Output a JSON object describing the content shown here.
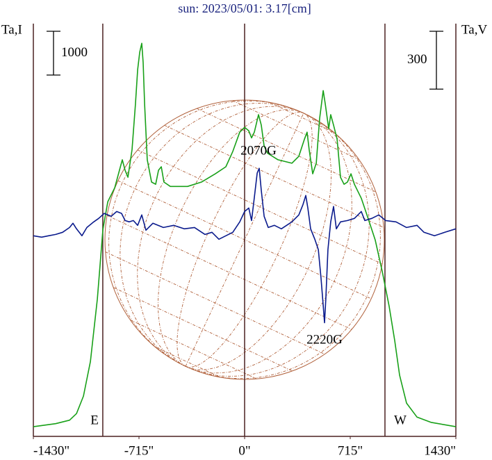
{
  "chart_data": {
    "type": "line",
    "title": "sun: 2023/05/01: 3.17[cm]",
    "y_label": "Ta,I",
    "y2_label": "Ta,V",
    "annotations": [
      "2070G",
      "2220G"
    ],
    "limb_labels": [
      "E",
      "W"
    ],
    "limb_lines": [
      -960,
      0,
      950
    ],
    "i_scale": 1000,
    "v_scale": 300,
    "xlim": [
      -1430,
      1430
    ],
    "xticks": [
      {
        "value": -1430,
        "label": "-1430\""
      },
      {
        "value": -715,
        "label": "-715\""
      },
      {
        "value": 0,
        "label": "0\""
      },
      {
        "value": 715,
        "label": "715\""
      },
      {
        "value": 1430,
        "label": "1430\""
      }
    ],
    "ylim": [
      -200,
      9230
    ],
    "y2lim": [
      -1040,
      1100
    ],
    "series": [
      {
        "name": "I",
        "color": "#18a018",
        "x": [
          -1430,
          -1279,
          -1185,
          -1138,
          -1091,
          -1044,
          -997,
          -959,
          -926,
          -879,
          -847,
          -828,
          -809,
          -790,
          -762,
          -739,
          -724,
          -710,
          -696,
          -687,
          -677,
          -659,
          -630,
          -602,
          -583,
          -564,
          -546,
          -503,
          -386,
          -292,
          -198,
          -127,
          -80,
          -33,
          0,
          28,
          47,
          66,
          94,
          113,
          132,
          155,
          226,
          320,
          367,
          405,
          423,
          437,
          461,
          485,
          508,
          532,
          546,
          569,
          583,
          602,
          626,
          649,
          673,
          696,
          720,
          743,
          790,
          837,
          884,
          931,
          978,
          1016,
          1049,
          1096,
          1167,
          1261,
          1430
        ],
        "values": [
          20,
          90,
          170,
          320,
          720,
          1510,
          2940,
          4530,
          5160,
          5480,
          5880,
          6120,
          5880,
          5720,
          6350,
          7390,
          8180,
          8580,
          8780,
          8340,
          7390,
          6120,
          5610,
          5560,
          5880,
          5960,
          5610,
          5510,
          5510,
          5610,
          5800,
          5960,
          6310,
          6750,
          6860,
          6780,
          6620,
          6750,
          7150,
          6910,
          6430,
          6270,
          6120,
          6040,
          6200,
          6590,
          6750,
          6350,
          5800,
          6040,
          7070,
          7700,
          7390,
          6830,
          7150,
          6910,
          6590,
          5720,
          5560,
          5610,
          5800,
          5560,
          5240,
          4770,
          4290,
          3580,
          2780,
          1990,
          1200,
          560,
          240,
          120,
          20
        ]
      },
      {
        "name": "V",
        "color": "#0a1a8c",
        "axis": "y2",
        "x": [
          -1430,
          -1374,
          -1327,
          -1279,
          -1232,
          -1185,
          -1162,
          -1138,
          -1101,
          -1068,
          -1021,
          -988,
          -950,
          -903,
          -866,
          -833,
          -809,
          -781,
          -753,
          -724,
          -696,
          -668,
          -621,
          -550,
          -480,
          -409,
          -339,
          -268,
          -221,
          -174,
          -127,
          -80,
          -33,
          0,
          28,
          47,
          66,
          85,
          99,
          113,
          132,
          160,
          202,
          249,
          320,
          367,
          395,
          414,
          428,
          447,
          475,
          499,
          517,
          532,
          541,
          550,
          564,
          583,
          602,
          621,
          649,
          696,
          743,
          790,
          814,
          861,
          908,
          955,
          1025,
          1096,
          1167,
          1214,
          1285,
          1355,
          1430
        ],
        "values": [
          0,
          -7,
          0,
          7,
          18,
          43,
          65,
          36,
          0,
          43,
          72,
          90,
          116,
          101,
          126,
          116,
          79,
          72,
          79,
          54,
          108,
          29,
          65,
          43,
          54,
          36,
          43,
          7,
          18,
          -18,
          0,
          18,
          72,
          126,
          144,
          79,
          199,
          325,
          350,
          235,
          101,
          43,
          54,
          36,
          72,
          108,
          162,
          209,
          144,
          36,
          -18,
          -72,
          -217,
          -361,
          -451,
          -325,
          -72,
          72,
          152,
          36,
          72,
          79,
          90,
          126,
          79,
          90,
          108,
          79,
          72,
          43,
          54,
          18,
          0,
          18,
          36
        ]
      }
    ]
  }
}
